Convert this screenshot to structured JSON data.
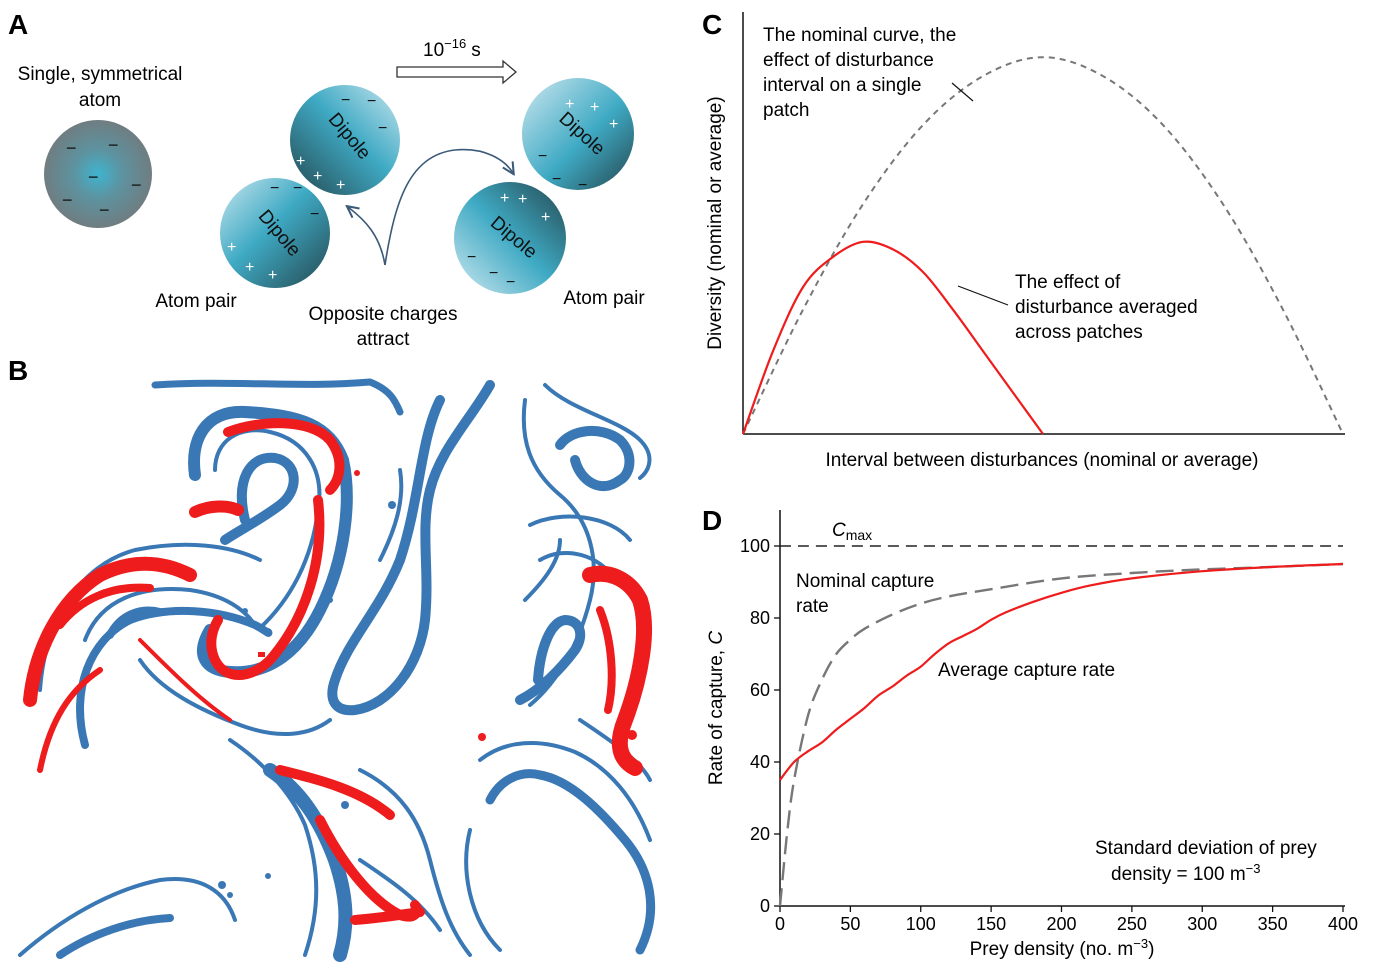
{
  "panel_a": {
    "letter": "A",
    "single_atom_label_line1": "Single, symmetrical",
    "single_atom_label_line2": "atom",
    "time_label": "10",
    "time_exponent": "−16",
    "time_unit": "s",
    "dipole_label": "Dipole",
    "atom_pair_left": "Atom pair",
    "atom_pair_right": "Atom pair",
    "attract_line1": "Opposite charges",
    "attract_line2": "attract",
    "minus": "−",
    "plus": "+",
    "colors": {
      "core": "#3fb4cf",
      "edge": "#26555e",
      "neutral": "#6e7e82"
    }
  },
  "panel_b": {
    "letter": "B",
    "colors": {
      "blue": "#3a78b5",
      "red": "#ee1c1c"
    }
  },
  "panel_c": {
    "letter": "C",
    "ylabel": "Diversity (nominal or average)",
    "xlabel": "Interval between disturbances (nominal or average)",
    "nominal_note": [
      "The nominal curve, the",
      "effect of disturbance",
      "interval on a single",
      "patch"
    ],
    "average_note": [
      "The effect of",
      "disturbance averaged",
      "across patches"
    ]
  },
  "panel_d": {
    "letter": "D",
    "ylabel_prefix": "Rate of capture, ",
    "ylabel_var": "C",
    "xlabel": "Prey density (no. m",
    "xlabel_exp": "−3",
    "xlabel_close": ")",
    "cmax_var": "C",
    "cmax_sub": "max",
    "nominal_label": [
      "Nominal capture",
      "rate"
    ],
    "average_label": "Average capture rate",
    "sd_line1": "Standard deviation of prey",
    "sd_line2": "density = 100 m",
    "sd_exp": "−3",
    "x_ticks": [
      "0",
      "50",
      "100",
      "150",
      "200",
      "250",
      "300",
      "350",
      "400"
    ],
    "y_ticks": [
      "0",
      "20",
      "40",
      "60",
      "80",
      "100"
    ]
  },
  "chart_data": [
    {
      "type": "line",
      "panel": "C",
      "series": [
        {
          "name": "nominal",
          "x": [
            0,
            0.1,
            0.2,
            0.3,
            0.4,
            0.5,
            0.6,
            0.7,
            0.8,
            0.9,
            1.0
          ],
          "values": [
            0,
            0.33,
            0.61,
            0.82,
            0.95,
            1.0,
            0.95,
            0.82,
            0.61,
            0.33,
            0
          ]
        },
        {
          "name": "average",
          "x": [
            0,
            0.05,
            0.1,
            0.15,
            0.2,
            0.25,
            0.3,
            0.35,
            0.4,
            0.45,
            0.5
          ],
          "values": [
            0,
            0.22,
            0.39,
            0.47,
            0.51,
            0.49,
            0.43,
            0.33,
            0.22,
            0.11,
            0
          ]
        }
      ],
      "xlabel": "Interval between disturbances (nominal or average)",
      "ylabel": "Diversity (nominal or average)",
      "ylim": [
        0,
        1.12
      ],
      "xlim": [
        0,
        1.0
      ],
      "grid": false
    },
    {
      "type": "line",
      "panel": "D",
      "series": [
        {
          "name": "Cmax",
          "x": [
            0,
            400
          ],
          "values": [
            100,
            100
          ]
        },
        {
          "name": "Nominal capture rate",
          "x": [
            0,
            5,
            10,
            20,
            30,
            40,
            50,
            60,
            80,
            100,
            120,
            150,
            200,
            250,
            300,
            350,
            400
          ],
          "values": [
            0,
            20,
            35,
            53,
            63,
            70,
            74,
            77,
            81,
            84,
            86,
            88,
            91,
            92.5,
            93.5,
            94.2,
            95
          ]
        },
        {
          "name": "Average capture rate",
          "x": [
            0,
            10,
            20,
            30,
            40,
            50,
            60,
            70,
            80,
            90,
            100,
            110,
            120,
            130,
            140,
            150,
            160,
            180,
            200,
            220,
            250,
            300,
            350,
            400
          ],
          "values": [
            35,
            40,
            43,
            45.5,
            49,
            52,
            55,
            58.5,
            61,
            64,
            66.5,
            70,
            73,
            75,
            77,
            79.5,
            81.5,
            84.5,
            87,
            89,
            91,
            93,
            94.2,
            95
          ]
        }
      ],
      "xlabel": "Prey density (no. m−3)",
      "ylabel": "Rate of capture, C",
      "xlim": [
        0,
        400
      ],
      "ylim": [
        0,
        110
      ],
      "x_ticks": [
        0,
        50,
        100,
        150,
        200,
        250,
        300,
        350,
        400
      ],
      "y_ticks": [
        0,
        20,
        40,
        60,
        80,
        100
      ],
      "grid": false
    }
  ]
}
